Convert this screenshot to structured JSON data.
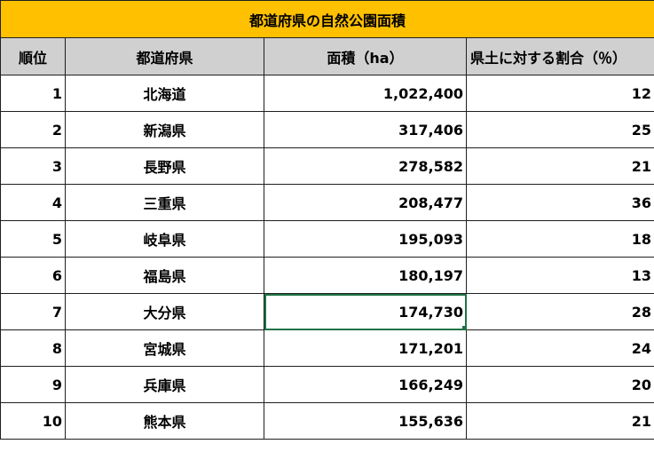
{
  "title": "都道府県の自然公園面積",
  "headers": {
    "rank": "順位",
    "prefecture": "都道府県",
    "area": "面積（ha）",
    "ratio": "県土に対する割合（％）"
  },
  "rows": [
    {
      "rank": "1",
      "prefecture": "北海道",
      "area": "1,022,400",
      "ratio": "12"
    },
    {
      "rank": "2",
      "prefecture": "新潟県",
      "area": "317,406",
      "ratio": "25"
    },
    {
      "rank": "3",
      "prefecture": "長野県",
      "area": "278,582",
      "ratio": "21"
    },
    {
      "rank": "4",
      "prefecture": "三重県",
      "area": "208,477",
      "ratio": "36"
    },
    {
      "rank": "5",
      "prefecture": "岐阜県",
      "area": "195,093",
      "ratio": "18"
    },
    {
      "rank": "6",
      "prefecture": "福島県",
      "area": "180,197",
      "ratio": "13"
    },
    {
      "rank": "7",
      "prefecture": "大分県",
      "area": "174,730",
      "ratio": "28"
    },
    {
      "rank": "8",
      "prefecture": "宮城県",
      "area": "171,201",
      "ratio": "24"
    },
    {
      "rank": "9",
      "prefecture": "兵庫県",
      "area": "166,249",
      "ratio": "20"
    },
    {
      "rank": "10",
      "prefecture": "熊本県",
      "area": "155,636",
      "ratio": "21"
    }
  ],
  "colors": {
    "title_fill": "#ffc000",
    "header_fill": "#d0d0d0",
    "selection": "#217346"
  }
}
